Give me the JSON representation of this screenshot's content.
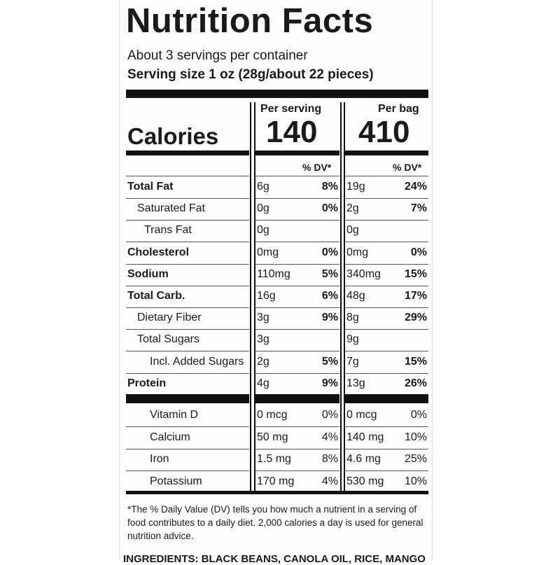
{
  "header": {
    "title": "Nutrition Facts",
    "servings": "About 3 servings per container",
    "serving_size": "Serving size 1 oz (28g/about 22 pieces)"
  },
  "columns": [
    "Per serving",
    "Per bag"
  ],
  "calories": {
    "label": "Calories",
    "per_serving": "140",
    "per_bag": "410"
  },
  "dv_header": [
    "% DV*",
    "% DV*"
  ],
  "nutrients": [
    {
      "name": "Total Fat",
      "serving": "6g",
      "serving_dv": "8%",
      "bag": "19g",
      "bag_dv": "24%"
    },
    {
      "name": "Saturated Fat",
      "serving": "0g",
      "serving_dv": "0%",
      "bag": "2g",
      "bag_dv": "7%"
    },
    {
      "name": "Trans Fat",
      "serving": "0g",
      "bag": "0g"
    },
    {
      "name": "Cholesterol",
      "serving": "0mg",
      "serving_dv": "0%",
      "bag": "0mg",
      "bag_dv": "0%"
    },
    {
      "name": "Sodium",
      "serving": "110mg",
      "serving_dv": "5%",
      "bag": "340mg",
      "bag_dv": "15%"
    },
    {
      "name": "Total Carb.",
      "serving": "16g",
      "serving_dv": "6%",
      "bag": "48g",
      "bag_dv": "17%"
    },
    {
      "name": "Dietary Fiber",
      "serving": "3g",
      "serving_dv": "9%",
      "bag": "8g",
      "bag_dv": "29%"
    },
    {
      "name": "Total Sugars",
      "serving": "3g",
      "bag": "9g"
    },
    {
      "name": "Incl. Added Sugars",
      "serving": "2g",
      "serving_dv": "5%",
      "bag": "7g",
      "bag_dv": "15%"
    },
    {
      "name": "Protein",
      "serving": "4g",
      "serving_dv": "9%",
      "bag": "13g",
      "bag_dv": "26%"
    }
  ],
  "vitamins": [
    {
      "name": "Vitamin D",
      "serving": "0 mcg",
      "serving_dv": "0%",
      "bag": "0 mcg",
      "bag_dv": "0%"
    },
    {
      "name": "Calcium",
      "serving": "50 mg",
      "serving_dv": "4%",
      "bag": "140 mg",
      "bag_dv": "10%"
    },
    {
      "name": "Iron",
      "serving": "1.5 mg",
      "serving_dv": "8%",
      "bag": "4.6 mg",
      "bag_dv": "25%"
    },
    {
      "name": "Potassium",
      "serving": "170 mg",
      "serving_dv": "4%",
      "bag": "530 mg",
      "bag_dv": "10%"
    }
  ],
  "footnote": "*The % Daily Value (DV) tells you how much a nutrient in a serving of food contributes to a daily diet. 2,000 calories a day is used for general nutrition advice.",
  "ingredients": "INGREDIENTS: BLACK BEANS, CANOLA OIL, RICE, MANGO"
}
